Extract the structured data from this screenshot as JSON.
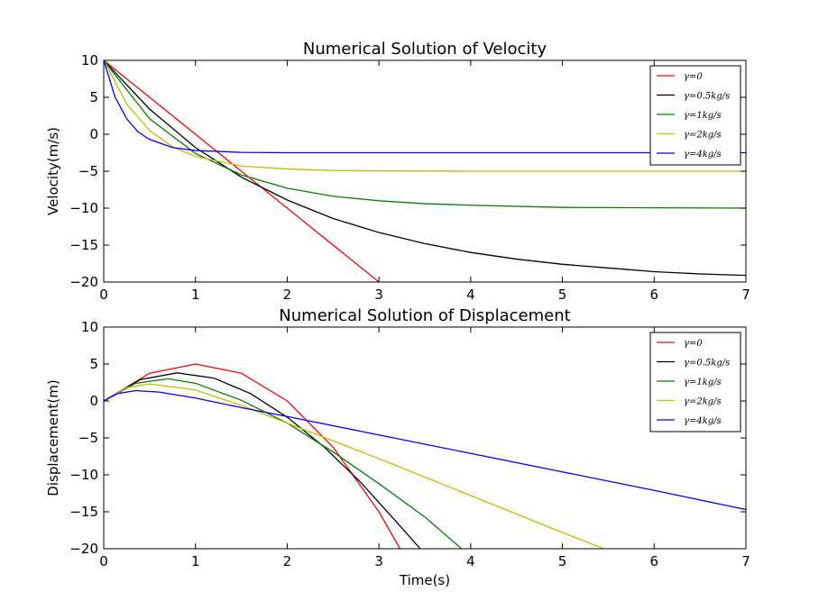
{
  "chart_data": [
    {
      "type": "line",
      "title": "Numerical Solution of Velocity",
      "xlabel": "",
      "ylabel": "Velocity(m/s)",
      "xlim": [
        0,
        7
      ],
      "ylim": [
        -20,
        10
      ],
      "xticks": [
        "0",
        "1",
        "2",
        "3",
        "4",
        "5",
        "6",
        "7"
      ],
      "yticks": [
        "10",
        "5",
        "0",
        "−5",
        "−10",
        "−15",
        "−20"
      ],
      "legend_position": "top-right",
      "grid": false,
      "series": [
        {
          "name": "γ=0",
          "color": "#ff0000",
          "x": [
            0,
            1,
            2,
            3
          ],
          "y": [
            10,
            0,
            -10,
            -20
          ]
        },
        {
          "name": "γ=0.5kg/s",
          "color": "#000000",
          "x": [
            0,
            0.5,
            1,
            1.5,
            2,
            2.5,
            3,
            3.5,
            4,
            4.5,
            5,
            5.5,
            6,
            6.5,
            7
          ],
          "y": [
            10,
            3.4,
            -1.8,
            -5.8,
            -8.9,
            -11.4,
            -13.3,
            -14.8,
            -16.0,
            -16.9,
            -17.6,
            -18.1,
            -18.6,
            -18.9,
            -19.1
          ]
        },
        {
          "name": "γ=1kg/s",
          "color": "#008000",
          "x": [
            0,
            0.5,
            1,
            1.5,
            2,
            2.5,
            3,
            3.5,
            4,
            5,
            6,
            7
          ],
          "y": [
            10,
            2.1,
            -2.6,
            -5.5,
            -7.3,
            -8.4,
            -9.0,
            -9.4,
            -9.6,
            -9.9,
            -9.95,
            -10.0
          ]
        },
        {
          "name": "γ=2kg/s",
          "color": "#bfbf00",
          "x": [
            0,
            0.25,
            0.5,
            0.75,
            1,
            1.5,
            2,
            2.5,
            3,
            4,
            5,
            6,
            7
          ],
          "y": [
            10,
            4.1,
            0.5,
            -1.7,
            -3.0,
            -4.3,
            -4.7,
            -4.9,
            -4.96,
            -5.0,
            -5.0,
            -5.0,
            -5.0
          ]
        },
        {
          "name": "γ=4kg/s",
          "color": "#0000ff",
          "x": [
            0,
            0.125,
            0.25,
            0.375,
            0.5,
            0.75,
            1,
            1.5,
            2,
            3,
            4,
            5,
            6,
            7
          ],
          "y": [
            10,
            5.0,
            2.1,
            0.3,
            -0.7,
            -1.8,
            -2.2,
            -2.45,
            -2.5,
            -2.5,
            -2.5,
            -2.5,
            -2.5,
            -2.5
          ]
        }
      ]
    },
    {
      "type": "line",
      "title": "Numerical Solution of Displacement",
      "xlabel": "Time(s)",
      "ylabel": "Displacement(m)",
      "xlim": [
        0,
        7
      ],
      "ylim": [
        -20,
        10
      ],
      "xticks": [
        "0",
        "1",
        "2",
        "3",
        "4",
        "5",
        "6",
        "7"
      ],
      "yticks": [
        "10",
        "5",
        "0",
        "−5",
        "−10",
        "−15",
        "−20"
      ],
      "legend_position": "top-right",
      "grid": false,
      "series": [
        {
          "name": "γ=0",
          "color": "#ff0000",
          "x": [
            0,
            0.5,
            1,
            1.5,
            2,
            2.5,
            3,
            3.23
          ],
          "y": [
            0,
            3.75,
            5.0,
            3.75,
            0,
            -6.25,
            -15.0,
            -20.0
          ]
        },
        {
          "name": "γ=0.5kg/s",
          "color": "#000000",
          "x": [
            0,
            0.4,
            0.8,
            1.2,
            1.6,
            2.0,
            2.4,
            2.8,
            3.2,
            3.45
          ],
          "y": [
            0,
            2.9,
            3.8,
            3.1,
            1.0,
            -2.2,
            -6.2,
            -11.0,
            -16.5,
            -20.0
          ]
        },
        {
          "name": "γ=1kg/s",
          "color": "#008000",
          "x": [
            0,
            0.35,
            0.7,
            1.0,
            1.5,
            2.0,
            2.5,
            3.0,
            3.5,
            3.9
          ],
          "y": [
            0,
            2.4,
            3.0,
            2.4,
            0.1,
            -3.0,
            -6.9,
            -11.2,
            -15.7,
            -20.0
          ]
        },
        {
          "name": "γ=2kg/s",
          "color": "#bfbf00",
          "x": [
            0,
            0.25,
            0.5,
            1.0,
            1.5,
            2.0,
            3.0,
            4.0,
            5.0,
            5.45
          ],
          "y": [
            0,
            1.8,
            2.3,
            1.5,
            -0.6,
            -3.0,
            -7.8,
            -12.8,
            -17.8,
            -20.0
          ]
        },
        {
          "name": "γ=4kg/s",
          "color": "#0000ff",
          "x": [
            0,
            0.15,
            0.35,
            0.6,
            1.0,
            1.5,
            2.0,
            3.0,
            4.0,
            5.0,
            6.0,
            7.0
          ],
          "y": [
            0,
            1.0,
            1.4,
            1.2,
            0.4,
            -0.9,
            -2.1,
            -4.6,
            -7.1,
            -9.6,
            -12.1,
            -14.7
          ]
        }
      ]
    }
  ]
}
